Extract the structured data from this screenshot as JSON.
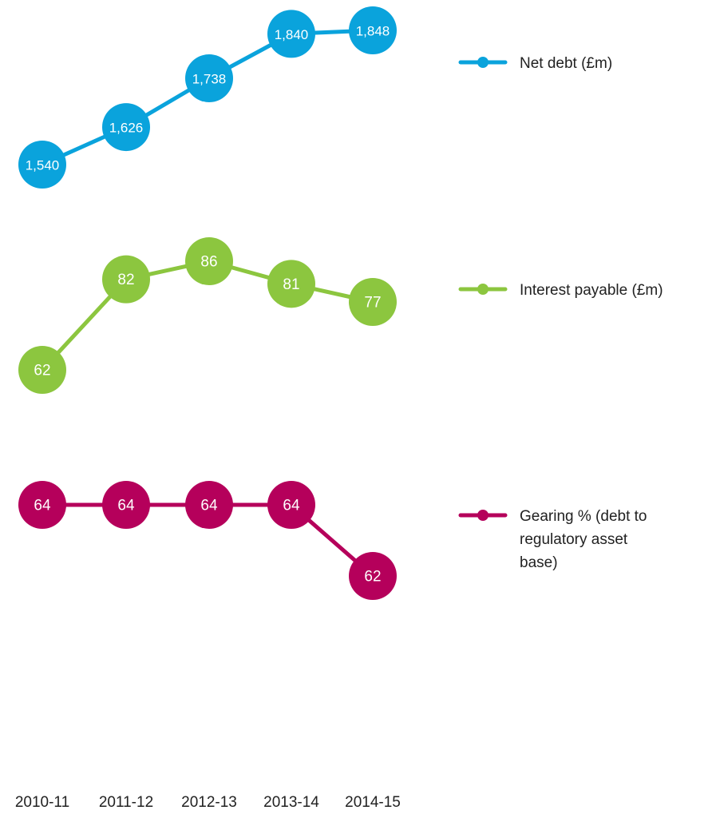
{
  "chart_data": {
    "type": "line",
    "categories": [
      "2010-11",
      "2011-12",
      "2012-13",
      "2013-14",
      "2014-15"
    ],
    "series": [
      {
        "name": "Net debt (£m)",
        "values": [
          1540,
          1626,
          1738,
          1840,
          1848
        ],
        "labels": [
          "1,540",
          "1,626",
          "1,738",
          "1,840",
          "1,848"
        ],
        "color": "#0AA3DC"
      },
      {
        "name": "Interest payable (£m)",
        "values": [
          62,
          82,
          86,
          81,
          77
        ],
        "labels": [
          "62",
          "82",
          "86",
          "81",
          "77"
        ],
        "color": "#8CC63F"
      },
      {
        "name": "Gearing % (debt to regulatory asset base)",
        "values": [
          64,
          64,
          64,
          64,
          62
        ],
        "labels": [
          "64",
          "64",
          "64",
          "64",
          "62"
        ],
        "color": "#B5005B"
      }
    ],
    "legend_position": "right",
    "grid": false
  }
}
